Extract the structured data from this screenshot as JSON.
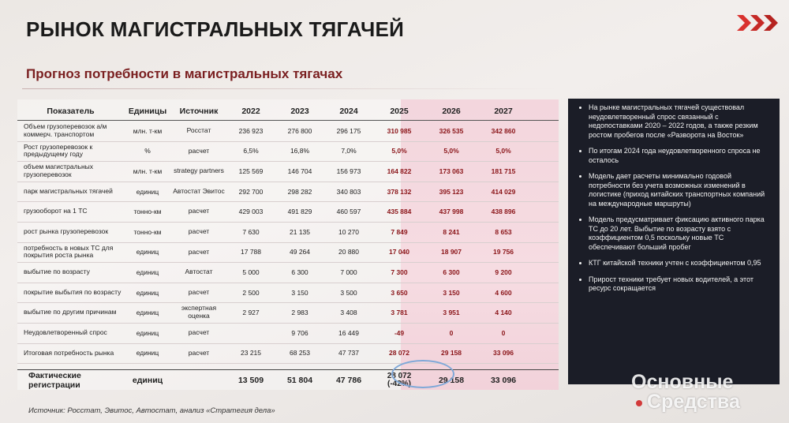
{
  "header": {
    "title": "РЫНОК МАГИСТРАЛЬНЫХ ТЯГАЧЕЙ",
    "subtitle": "Прогноз потребности в магистральных тягачах",
    "logo_icon": "red-chevrons-icon"
  },
  "table": {
    "columns": [
      "Показатель",
      "Единицы",
      "Источник",
      "2022",
      "2023",
      "2024",
      "2025",
      "2026",
      "2027"
    ],
    "rows": [
      {
        "name": "Объем грузоперевозок а/м коммерч. транспортом",
        "unit": "млн. т-км",
        "source": "Росстат",
        "v": [
          "236 923",
          "276 800",
          "296 175",
          "310 985",
          "326 535",
          "342 860"
        ]
      },
      {
        "name": "Рост грузоперевозок к предыдущему году",
        "unit": "%",
        "source": "расчет",
        "v": [
          "6,5%",
          "16,8%",
          "7,0%",
          "5,0%",
          "5,0%",
          "5,0%"
        ]
      },
      {
        "name": "объем магистральных грузоперевозок",
        "unit": "млн. т-км",
        "source": "strategy partners",
        "v": [
          "125 569",
          "146 704",
          "156 973",
          "164 822",
          "173 063",
          "181 715"
        ]
      },
      {
        "name": "парк магистральных тягачей",
        "unit": "единиц",
        "source": "Автостат Эвитос",
        "v": [
          "292 700",
          "298 282",
          "340 803",
          "378 132",
          "395 123",
          "414 029"
        ]
      },
      {
        "name": "грузооборот на 1 ТС",
        "unit": "тонно-км",
        "source": "расчет",
        "v": [
          "429 003",
          "491 829",
          "460 597",
          "435 884",
          "437 998",
          "438 896"
        ]
      },
      {
        "name": "рост рынка грузоперевозок",
        "unit": "тонно-км",
        "source": "расчет",
        "v": [
          "7 630",
          "21 135",
          "10 270",
          "7 849",
          "8 241",
          "8 653"
        ]
      },
      {
        "name": "потребность в новых ТС для покрытия роста рынка",
        "unit": "единиц",
        "source": "расчет",
        "v": [
          "17 788",
          "49 264",
          "20 880",
          "17 040",
          "18 907",
          "19 756"
        ]
      },
      {
        "name": "выбытие по возрасту",
        "unit": "единиц",
        "source": "Автостат",
        "v": [
          "5 000",
          "6 300",
          "7 000",
          "7 300",
          "6 300",
          "9 200"
        ]
      },
      {
        "name": "покрытие выбытия по возрасту",
        "unit": "единиц",
        "source": "расчет",
        "v": [
          "2 500",
          "3 150",
          "3 500",
          "3 650",
          "3 150",
          "4 600"
        ]
      },
      {
        "name": "выбытие по другим причинам",
        "unit": "единиц",
        "source": "экспертная оценка",
        "v": [
          "2 927",
          "2 983",
          "3 408",
          "3 781",
          "3 951",
          "4 140"
        ]
      },
      {
        "name": "Неудовлетворенный спрос",
        "unit": "единиц",
        "source": "расчет",
        "v": [
          "",
          "9 706",
          "16 449",
          "-49",
          "0",
          "0"
        ]
      },
      {
        "name": "Итоговая потребность рынка",
        "unit": "единиц",
        "source": "расчет",
        "v": [
          "23 215",
          "68 253",
          "47 737",
          "28 072",
          "29 158",
          "33 096"
        ]
      }
    ],
    "total": {
      "name": "Фактические регистрации",
      "unit": "единиц",
      "v": [
        "13 509",
        "51 804",
        "47 786",
        "28 072 (-42%)",
        "29 158",
        "33 096"
      ]
    }
  },
  "panel": {
    "bullets": [
      "На рынке магистральных тягачей существовал неудовлетворенный спрос связанный с недопоставками 2020 – 2022 годов, а также резким ростом пробегов после «Разворота на Восток»",
      "По итогам 2024 года неудовлетворенного спроса не осталось",
      "Модель дает расчеты минимально годовой потребности без учета возможных изменений в логистике (приход китайских транспортных компаний на международные маршруты)",
      "Модель предусматривает фиксацию активного парка ТС до 20 лет. Выбытие по возрасту взято с коэффициентом 0,5 поскольку новые ТС обеспечивают больший пробег",
      "КТГ китайской техники учтен с коэффициентом 0,95",
      "Прирост техники требует новых водителей, а этот ресурс сокращается"
    ]
  },
  "footer": {
    "source": "Источник: Росстат, Эвитос, Автостат, анализ «Стратегия дела»"
  },
  "watermark": {
    "line1": "Основные",
    "line2": "Средства"
  },
  "colors": {
    "accent": "#7a1f20",
    "forecast_bg": "#f3d6dd",
    "forecast_text": "#8a1418",
    "panel_bg": "#1b1d27",
    "highlight_ellipse": "#7fa8d8"
  }
}
